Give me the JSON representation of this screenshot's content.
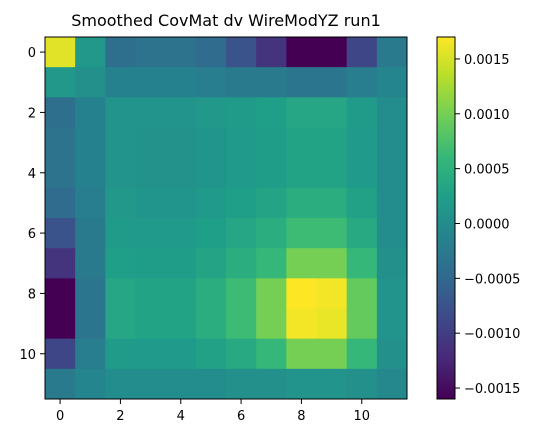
{
  "chart_data": {
    "type": "heatmap",
    "title": "Smoothed CovMat dv WireModYZ run1",
    "xlabel": "",
    "ylabel": "",
    "x_ticks": [
      "0",
      "2",
      "4",
      "6",
      "8",
      "10"
    ],
    "y_ticks": [
      "0",
      "2",
      "4",
      "6",
      "8",
      "10"
    ],
    "n_rows": 12,
    "n_cols": 12,
    "values": [
      [
        0.00155,
        0.00015,
        -0.0004,
        -0.00035,
        -0.00035,
        -0.00045,
        -0.00075,
        -0.0011,
        -0.0016,
        -0.0016,
        -0.0009,
        -0.00025
      ],
      [
        0.00015,
        5e-05,
        -0.00015,
        -0.00015,
        -0.00015,
        -0.0002,
        -0.00025,
        -0.00025,
        -0.0003,
        -0.0003,
        -0.0002,
        -0.0001
      ],
      [
        -0.0004,
        -0.00015,
        0.0001,
        0.0001,
        0.0001,
        0.00015,
        0.0002,
        0.00025,
        0.00035,
        0.00035,
        0.0002,
        0.0
      ],
      [
        -0.00035,
        -0.00015,
        0.0001,
        8e-05,
        8e-05,
        0.00012,
        0.00018,
        0.00022,
        0.0003,
        0.0003,
        0.00018,
        0.0
      ],
      [
        -0.00035,
        -0.00015,
        0.0001,
        8e-05,
        8e-05,
        0.00012,
        0.00018,
        0.00022,
        0.0003,
        0.0003,
        0.00018,
        0.0
      ],
      [
        -0.00045,
        -0.0002,
        0.00015,
        0.00012,
        0.00012,
        0.00018,
        0.00025,
        0.00032,
        0.00045,
        0.00045,
        0.00028,
        0.0
      ],
      [
        -0.00075,
        -0.00025,
        0.0002,
        0.00018,
        0.00018,
        0.00025,
        0.00035,
        0.00045,
        0.00065,
        0.00065,
        0.0004,
        0.0
      ],
      [
        -0.0011,
        -0.00025,
        0.00025,
        0.00022,
        0.00022,
        0.00032,
        0.00045,
        0.0006,
        0.001,
        0.001,
        0.0006,
        5e-05
      ],
      [
        -0.0016,
        -0.0003,
        0.00035,
        0.0003,
        0.0003,
        0.00045,
        0.00065,
        0.001,
        0.0017,
        0.00165,
        0.0009,
        0.0001
      ],
      [
        -0.0016,
        -0.0003,
        0.00035,
        0.0003,
        0.0003,
        0.00045,
        0.00065,
        0.001,
        0.00165,
        0.0016,
        0.0009,
        0.0001
      ],
      [
        -0.0009,
        -0.0002,
        0.0002,
        0.00018,
        0.00018,
        0.00028,
        0.0004,
        0.0006,
        0.001,
        0.001,
        0.0006,
        5e-05
      ],
      [
        -0.00025,
        -0.0001,
        0.0,
        0.0,
        0.0,
        0.0,
        5e-05,
        5e-05,
        0.0001,
        0.0001,
        5e-05,
        -5e-05
      ]
    ],
    "colormap": "viridis",
    "colorbar": {
      "vmin": -0.0016,
      "vmax": 0.0017,
      "ticks": [
        0.0015,
        0.001,
        0.0005,
        0.0,
        -0.0005,
        -0.001,
        -0.0015
      ],
      "tick_labels": [
        "0.0015",
        "0.0010",
        "0.0005",
        "0.0000",
        "−0.0005",
        "−0.0010",
        "−0.0015"
      ]
    },
    "colors": {
      "viridis": [
        "#440154",
        "#482878",
        "#3e4989",
        "#31688e",
        "#26828e",
        "#1f9e89",
        "#35b779",
        "#6ece58",
        "#b5de2b",
        "#fde725"
      ],
      "axis": "#000000",
      "background": "#ffffff"
    },
    "grid": false,
    "legend": "none"
  }
}
